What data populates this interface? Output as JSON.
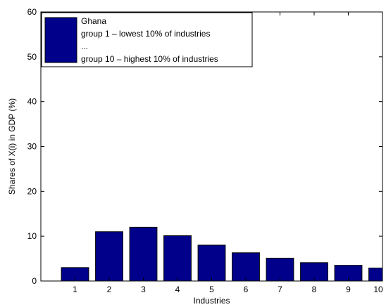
{
  "chart_data": {
    "type": "bar",
    "categories": [
      "1",
      "2",
      "3",
      "4",
      "5",
      "6",
      "7",
      "8",
      "9",
      "10"
    ],
    "values": [
      3.0,
      11.0,
      12.0,
      10.1,
      8.0,
      6.3,
      5.1,
      4.1,
      3.5,
      2.9
    ],
    "xlabel": "Industries",
    "ylabel": "Shares of X(i) in GDP (%)",
    "ylim": [
      0,
      60
    ],
    "yticks": [
      "0",
      "10",
      "20",
      "30",
      "40",
      "50",
      "60"
    ],
    "grid": false,
    "bar_color": "#00008B",
    "legend": {
      "placement": "top-left",
      "lines": [
        "Ghana",
        "group 1 – lowest 10% of industries",
        "...",
        "group 10 – highest 10% of industries"
      ]
    }
  }
}
